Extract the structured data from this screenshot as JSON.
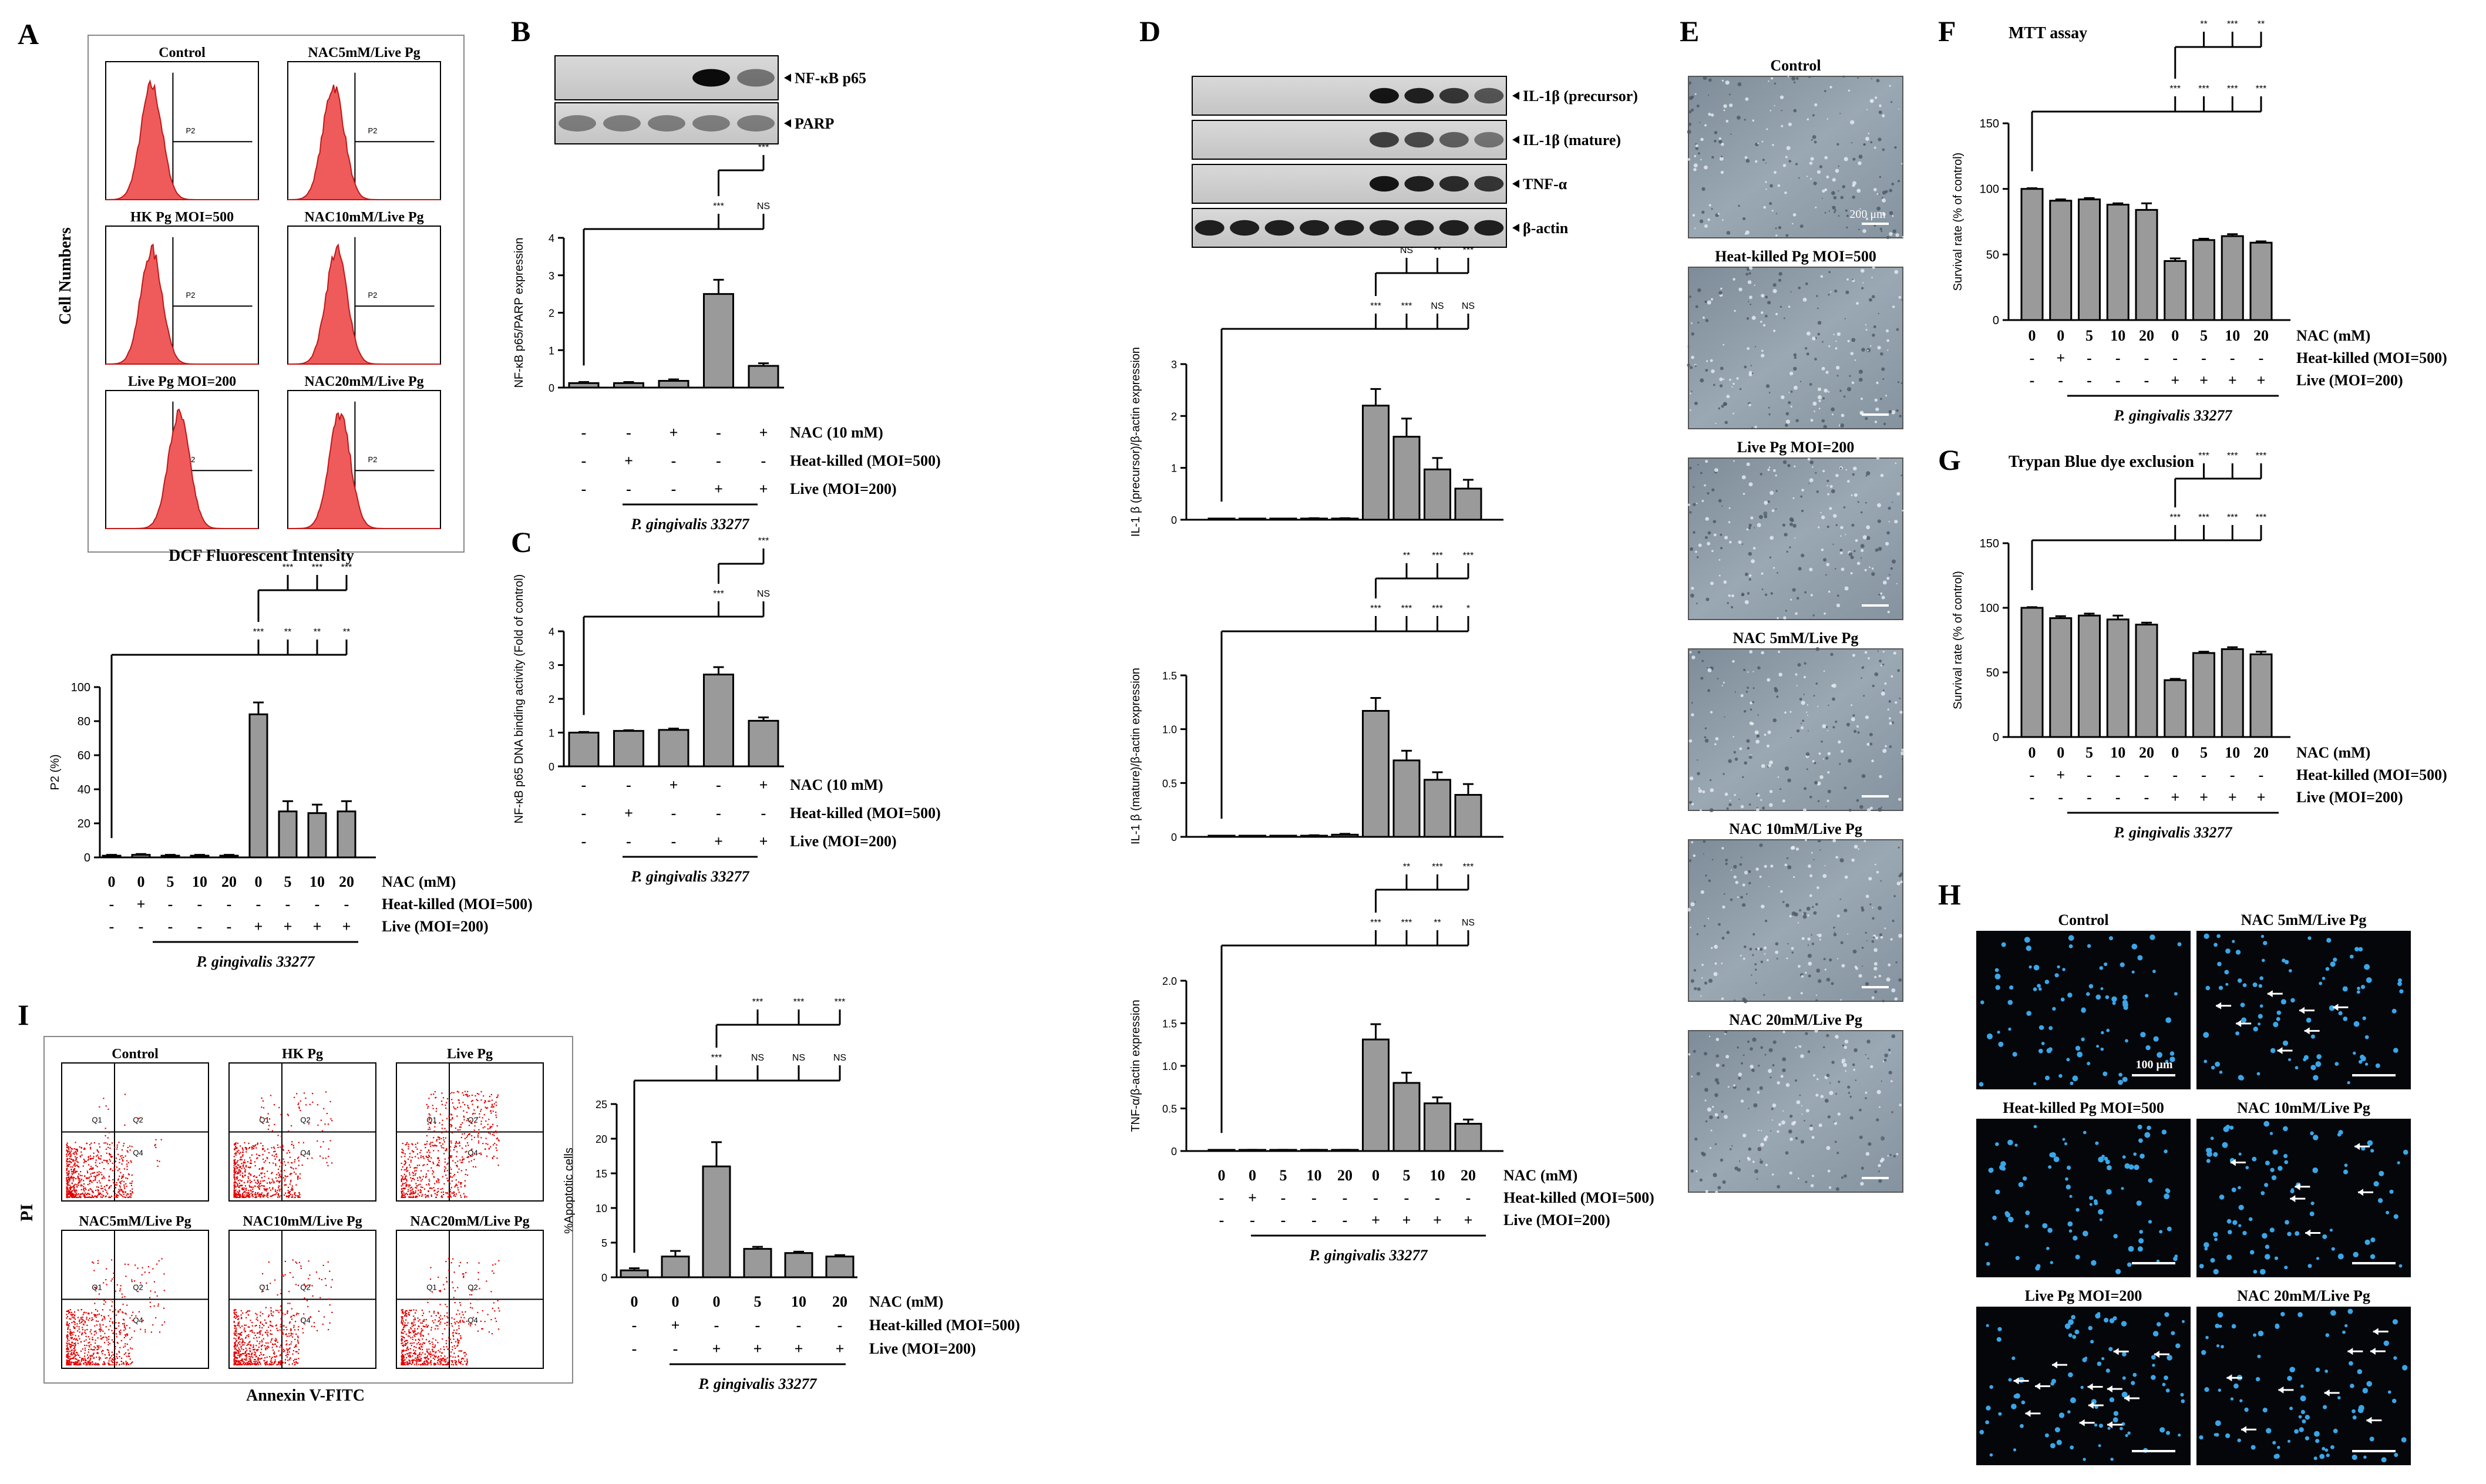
{
  "figure": {
    "panel_letters": [
      "A",
      "B",
      "C",
      "D",
      "E",
      "F",
      "G",
      "H",
      "I"
    ],
    "species": "P. gingivalis 33277",
    "treatment_rows": {
      "nac": "NAC (mM)",
      "nac10": "NAC (10 mM)",
      "heat": "Heat-killed (MOI=500)",
      "live": "Live (MOI=200)"
    },
    "nac_levels": [
      "0",
      "0",
      "5",
      "10",
      "20",
      "0",
      "5",
      "10",
      "20"
    ],
    "heat_signs": [
      "-",
      "+",
      "-",
      "-",
      "-",
      "-",
      "-",
      "-",
      "-"
    ],
    "live_signs": [
      "-",
      "-",
      "-",
      "-",
      "-",
      "+",
      "+",
      "+",
      "+"
    ],
    "short_nac": [
      "0",
      "0",
      "0",
      "5",
      "10",
      "20"
    ],
    "short_heat": [
      "-",
      "+",
      "-",
      "-",
      "-",
      "-"
    ],
    "short_live": [
      "-",
      "-",
      "+",
      "+",
      "+",
      "+"
    ],
    "b_nac": [
      "-",
      "-",
      "+",
      "-",
      "+"
    ],
    "b_heat": [
      "-",
      "+",
      "-",
      "-",
      "-"
    ],
    "b_live": [
      "-",
      "-",
      "-",
      "+",
      "+"
    ]
  },
  "panel_a": {
    "flow_titles": [
      "Control",
      "NAC5mM/Live Pg",
      "HK Pg MOI=500",
      "NAC10mM/Live Pg",
      "Live Pg MOI=200",
      "NAC20mM/Live Pg"
    ],
    "gate_label": "P2",
    "y_title": "Cell Numbers",
    "x_title": "DCF Fluorescent Intensity"
  },
  "panel_b": {
    "blots": [
      "NF-κB p65",
      "PARP"
    ]
  },
  "panel_d": {
    "blots": [
      "IL-1β (precursor)",
      "IL-1β (mature)",
      "TNF-α",
      "β-actin"
    ]
  },
  "panel_e": {
    "titles": [
      "Control",
      "Heat-killed Pg MOI=500",
      "Live Pg MOI=200",
      "NAC 5mM/Live Pg",
      "NAC 10mM/Live Pg",
      "NAC 20mM/Live Pg"
    ],
    "scale_label": "200 μm"
  },
  "panel_h": {
    "titles": [
      "Control",
      "NAC 5mM/Live Pg",
      "Heat-killed Pg MOI=500",
      "NAC 10mM/Live Pg",
      "Live Pg MOI=200",
      "NAC 20mM/Live Pg"
    ],
    "scale_label": "100 μm"
  },
  "panel_i": {
    "flow_titles": [
      "Control",
      "HK Pg",
      "Live Pg",
      "NAC5mM/Live Pg",
      "NAC10mM/Live Pg",
      "NAC20mM/Live Pg"
    ],
    "quadrants": [
      "Q1",
      "Q2",
      "Q4"
    ],
    "y_title": "PI",
    "x_title": "Annexin V-FITC"
  },
  "chart_data": [
    {
      "id": "A",
      "type": "bar",
      "ylabel": "P2 (%)",
      "ylim": [
        0,
        100
      ],
      "yticks": [
        "0",
        "20",
        "40",
        "60",
        "80",
        "100"
      ],
      "values": [
        1,
        1.5,
        1,
        1,
        1,
        84,
        27,
        26,
        27
      ],
      "errors": [
        0.5,
        0.5,
        0.5,
        0.5,
        0.5,
        7,
        6,
        5,
        6
      ],
      "sig_top": [
        "***",
        "***",
        "***"
      ],
      "sig_bottom": [
        "***",
        "**",
        "**",
        "**"
      ]
    },
    {
      "id": "B",
      "type": "bar",
      "ylabel": "NF-κB p65/PARP expression",
      "ylim": [
        0,
        4
      ],
      "yticks": [
        "0",
        "1",
        "2",
        "3",
        "4"
      ],
      "values": [
        0.12,
        0.12,
        0.18,
        2.5,
        0.58
      ],
      "errors": [
        0.03,
        0.03,
        0.04,
        0.38,
        0.07
      ],
      "sig_top": [
        "***"
      ],
      "sig_bottom": [
        "***",
        "NS"
      ]
    },
    {
      "id": "C",
      "type": "bar",
      "ylabel": "NF-κB p65 DNA binding activity (Fold of control)",
      "ylim": [
        0,
        4
      ],
      "yticks": [
        "0",
        "1",
        "2",
        "3",
        "4"
      ],
      "values": [
        1.0,
        1.05,
        1.08,
        2.72,
        1.35
      ],
      "errors": [
        0.02,
        0.02,
        0.04,
        0.22,
        0.1
      ],
      "sig_top": [
        "***"
      ],
      "sig_bottom": [
        "***",
        "NS"
      ]
    },
    {
      "id": "D1",
      "type": "bar",
      "ylabel": "IL-1 β (precursor)/β-actin expression",
      "ylim": [
        0,
        3
      ],
      "yticks": [
        "0",
        "1",
        "2",
        "3"
      ],
      "values": [
        0.01,
        0.01,
        0.01,
        0.02,
        0.02,
        2.2,
        1.6,
        0.97,
        0.6
      ],
      "errors": [
        0.01,
        0.01,
        0.01,
        0.01,
        0.01,
        0.32,
        0.35,
        0.22,
        0.17
      ],
      "sig_top": [
        "NS",
        "**",
        "***"
      ],
      "sig_bottom": [
        "***",
        "***",
        "NS",
        "NS"
      ]
    },
    {
      "id": "D2",
      "type": "bar",
      "ylabel": "IL-1 β (mature)/β-actin expression",
      "ylim": [
        0,
        1.5
      ],
      "yticks": [
        "0",
        "0.5",
        "1.0",
        "1.5"
      ],
      "values": [
        0.005,
        0.005,
        0.005,
        0.01,
        0.02,
        1.17,
        0.71,
        0.53,
        0.39
      ],
      "errors": [
        0.003,
        0.003,
        0.003,
        0.005,
        0.008,
        0.12,
        0.09,
        0.07,
        0.1
      ],
      "sig_top": [
        "**",
        "***",
        "***"
      ],
      "sig_bottom": [
        "***",
        "***",
        "***",
        "*"
      ]
    },
    {
      "id": "D3",
      "type": "bar",
      "ylabel": "TNF-α/β-actin expression",
      "ylim": [
        0,
        2.0
      ],
      "yticks": [
        "0",
        "0.5",
        "1.0",
        "1.5",
        "2.0"
      ],
      "values": [
        0.005,
        0.01,
        0.01,
        0.01,
        0.01,
        1.31,
        0.8,
        0.56,
        0.32
      ],
      "errors": [
        0.003,
        0.005,
        0.005,
        0.005,
        0.005,
        0.18,
        0.12,
        0.07,
        0.05
      ],
      "sig_top": [
        "**",
        "***",
        "***"
      ],
      "sig_bottom": [
        "***",
        "***",
        "**",
        "NS"
      ]
    },
    {
      "id": "F",
      "type": "bar",
      "title": "MTT assay",
      "ylabel": "Survival rate (% of control)",
      "ylim": [
        0,
        150
      ],
      "yticks": [
        "0",
        "50",
        "100",
        "150"
      ],
      "values": [
        100,
        91,
        92,
        88,
        84,
        45,
        61,
        64,
        59
      ],
      "errors": [
        0.5,
        1,
        1,
        1,
        5,
        2,
        1,
        1.5,
        1
      ],
      "sig_top": [
        "**",
        "***",
        "**"
      ],
      "sig_bottom": [
        "***",
        "***",
        "***",
        "***"
      ]
    },
    {
      "id": "G",
      "type": "bar",
      "title": "Trypan Blue dye exclusion",
      "ylabel": "Survival rate (% of control)",
      "ylim": [
        0,
        150
      ],
      "yticks": [
        "0",
        "50",
        "100",
        "150"
      ],
      "values": [
        100,
        92,
        94,
        91,
        87,
        44,
        65,
        68,
        64
      ],
      "errors": [
        0.5,
        1.5,
        1.5,
        3,
        1.5,
        1,
        1,
        1.5,
        2
      ],
      "sig_top": [
        "***",
        "***",
        "***"
      ],
      "sig_bottom": [
        "***",
        "***",
        "***",
        "***"
      ]
    },
    {
      "id": "I",
      "type": "bar",
      "ylabel": "%Apoptotic cells",
      "ylim": [
        0,
        25
      ],
      "yticks": [
        "0",
        "5",
        "10",
        "15",
        "20",
        "25"
      ],
      "values": [
        1.0,
        3.0,
        16.0,
        4.1,
        3.5,
        3.0
      ],
      "errors": [
        0.3,
        0.8,
        3.5,
        0.3,
        0.2,
        0.2
      ],
      "sig_top": [
        "***",
        "***",
        "***"
      ],
      "sig_bottom": [
        "***",
        "NS",
        "NS",
        "NS"
      ]
    }
  ]
}
